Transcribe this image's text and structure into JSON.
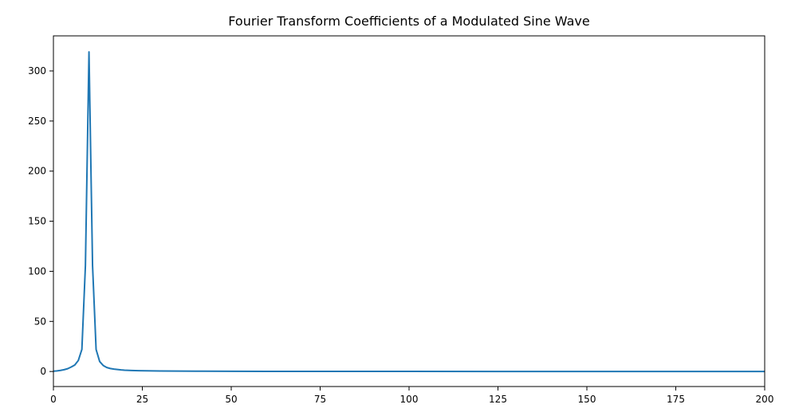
{
  "chart_data": {
    "type": "line",
    "title": "Fourier Transform Coefficients of a Modulated Sine Wave",
    "xlabel": "",
    "ylabel": "",
    "xlim": [
      0,
      200
    ],
    "ylim": [
      -15,
      335
    ],
    "xticks": [
      0,
      25,
      50,
      75,
      100,
      125,
      150,
      175,
      200
    ],
    "yticks": [
      0,
      50,
      100,
      150,
      200,
      250,
      300
    ],
    "grid": false,
    "legend": "none",
    "line_color": "#1f77b4",
    "series": [
      {
        "x": [
          0,
          1,
          2,
          3,
          4,
          5,
          6,
          7,
          8,
          9,
          10,
          11,
          12,
          13,
          14,
          15,
          16,
          17,
          18,
          19,
          20,
          22,
          24,
          26,
          28,
          30,
          35,
          40,
          50,
          60,
          80,
          100,
          125,
          150,
          175,
          200
        ],
        "values": [
          0.3,
          0.6,
          1.1,
          1.8,
          2.8,
          4.5,
          6.5,
          11,
          22,
          106,
          319,
          106,
          22,
          10,
          6,
          4,
          3,
          2.4,
          2,
          1.6,
          1.3,
          1.0,
          0.8,
          0.7,
          0.6,
          0.5,
          0.4,
          0.3,
          0.2,
          0.15,
          0.1,
          0.08,
          0.05,
          0.03,
          0.02,
          0.0
        ]
      }
    ]
  }
}
